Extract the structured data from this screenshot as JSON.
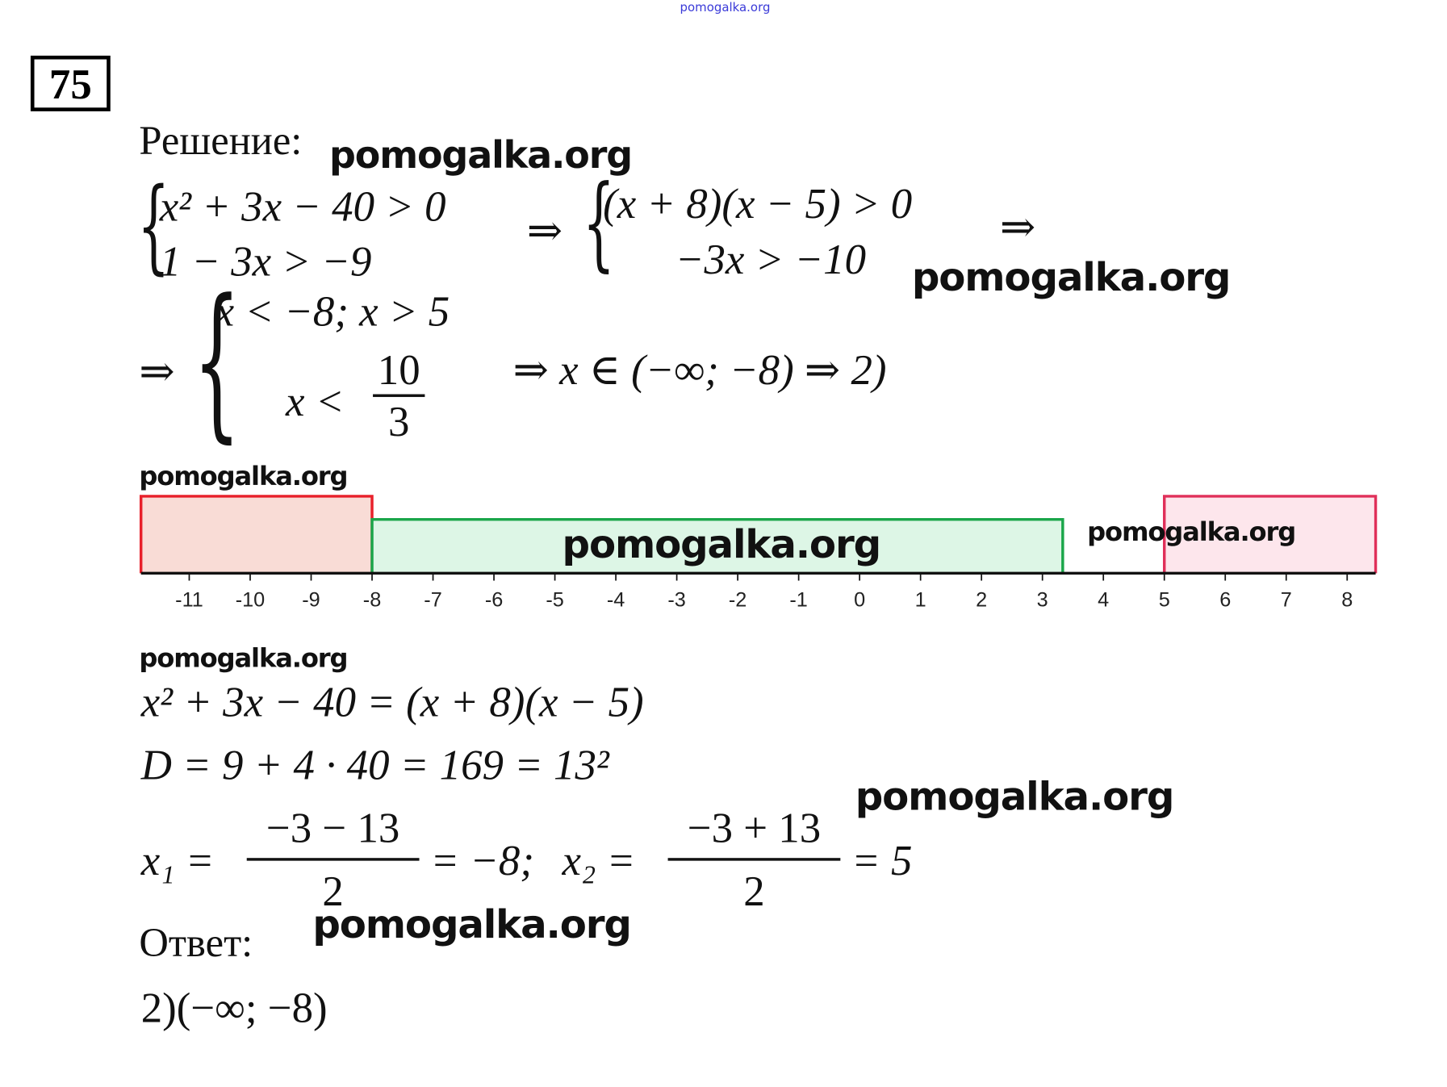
{
  "watermark_top": "pomogalka.org",
  "watermark": "pomogalka.org",
  "problem_number": "75",
  "solution_label": "Решение:",
  "system1": {
    "line1": "x² + 3x − 40 > 0",
    "line2": "1 − 3x > −9"
  },
  "system2": {
    "line1": "(x + 8)(x − 5) > 0",
    "line2": "−3x > −10"
  },
  "implies": "⇒",
  "system3": {
    "line1": "x < −8; x > 5",
    "line2_prefix": "x <",
    "frac_num": "10",
    "frac_den": "3"
  },
  "conclusion": "⇒ x ∈ (−∞; −8) ⇒ 2)",
  "number_line": {
    "ticks": [
      "-11",
      "-10",
      "-9",
      "-8",
      "-7",
      "-6",
      "-5",
      "-4",
      "-3",
      "-2",
      "-1",
      "0",
      "1",
      "2",
      "3",
      "4",
      "5",
      "6",
      "7",
      "8"
    ],
    "ranges": [
      {
        "from": "-inf",
        "to": -8,
        "color": "#e8202a",
        "fill": "#f9dcd6"
      },
      {
        "from": -8,
        "to": 3.333,
        "color": "#1aa64a",
        "fill": "#d9f5e3"
      },
      {
        "from": 5,
        "to": "inf",
        "color": "#e0305a",
        "fill": "#fde3ea"
      }
    ]
  },
  "factorization": "x² + 3x − 40 = (x + 8)(x − 5)",
  "discriminant": "D = 9 + 4 · 40 = 169 = 13²",
  "roots": {
    "x1_label": "x₁ =",
    "x1_num": "−3 − 13",
    "x1_den": "2",
    "x1_result": "= −8;",
    "x2_label": "x₂ =",
    "x2_num": "−3 + 13",
    "x2_den": "2",
    "x2_result": "= 5"
  },
  "answer_label": "Ответ:",
  "answer": "2)(−∞; −8)"
}
